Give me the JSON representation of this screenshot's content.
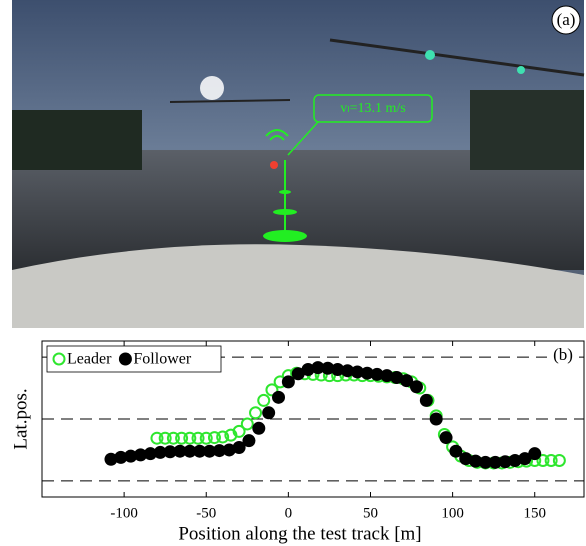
{
  "photo": {
    "label": "(a)",
    "speed_label": "vₗ=13.1 m/s"
  },
  "chart_data": {
    "type": "scatter",
    "label": "(b)",
    "x_label": "Position along the test track [m]",
    "y_label": "Lat.pos.",
    "xlim": [
      -150,
      180
    ],
    "ylim": [
      -1.26,
      1.26
    ],
    "xticks": [
      -100,
      -50,
      0,
      50,
      100,
      150
    ],
    "hlines": [
      -1,
      0,
      1
    ],
    "legend": "upper-left",
    "series": [
      {
        "name": "Leader",
        "color": "#2ee62e",
        "marker": "open",
        "x": [
          -80,
          -75,
          -70,
          -65,
          -60,
          -55,
          -50,
          -45,
          -40,
          -35,
          -30,
          -25,
          -20,
          -15,
          -10,
          -5,
          0,
          5,
          10,
          15,
          20,
          25,
          30,
          35,
          40,
          45,
          50,
          55,
          60,
          65,
          70,
          75,
          80,
          85,
          90,
          95,
          100,
          105,
          110,
          115,
          120,
          125,
          130,
          135,
          140,
          145,
          150,
          155,
          160,
          165
        ],
        "values": [
          -0.31,
          -0.31,
          -0.31,
          -0.31,
          -0.31,
          -0.31,
          -0.31,
          -0.3,
          -0.29,
          -0.26,
          -0.2,
          -0.08,
          0.1,
          0.3,
          0.47,
          0.6,
          0.7,
          0.74,
          0.73,
          0.72,
          0.71,
          0.7,
          0.7,
          0.71,
          0.71,
          0.7,
          0.7,
          0.69,
          0.68,
          0.67,
          0.65,
          0.6,
          0.5,
          0.3,
          0.05,
          -0.25,
          -0.45,
          -0.6,
          -0.67,
          -0.7,
          -0.71,
          -0.71,
          -0.71,
          -0.7,
          -0.69,
          -0.68,
          -0.67,
          -0.67,
          -0.67,
          -0.67
        ]
      },
      {
        "name": "Follower",
        "color": "#000000",
        "marker": "filled",
        "x": [
          -108,
          -102,
          -96,
          -90,
          -84,
          -78,
          -72,
          -66,
          -60,
          -54,
          -48,
          -42,
          -36,
          -30,
          -24,
          -18,
          -12,
          -6,
          0,
          6,
          12,
          18,
          24,
          30,
          36,
          42,
          48,
          54,
          60,
          66,
          72,
          78,
          84,
          90,
          96,
          102,
          108,
          114,
          120,
          126,
          132,
          138,
          144,
          150
        ],
        "values": [
          -0.65,
          -0.62,
          -0.6,
          -0.58,
          -0.56,
          -0.54,
          -0.53,
          -0.52,
          -0.52,
          -0.52,
          -0.52,
          -0.51,
          -0.5,
          -0.46,
          -0.35,
          -0.15,
          0.1,
          0.35,
          0.6,
          0.73,
          0.8,
          0.83,
          0.82,
          0.8,
          0.78,
          0.76,
          0.74,
          0.72,
          0.7,
          0.67,
          0.62,
          0.52,
          0.3,
          0.0,
          -0.3,
          -0.52,
          -0.64,
          -0.68,
          -0.7,
          -0.7,
          -0.69,
          -0.67,
          -0.64,
          -0.56
        ]
      }
    ]
  }
}
